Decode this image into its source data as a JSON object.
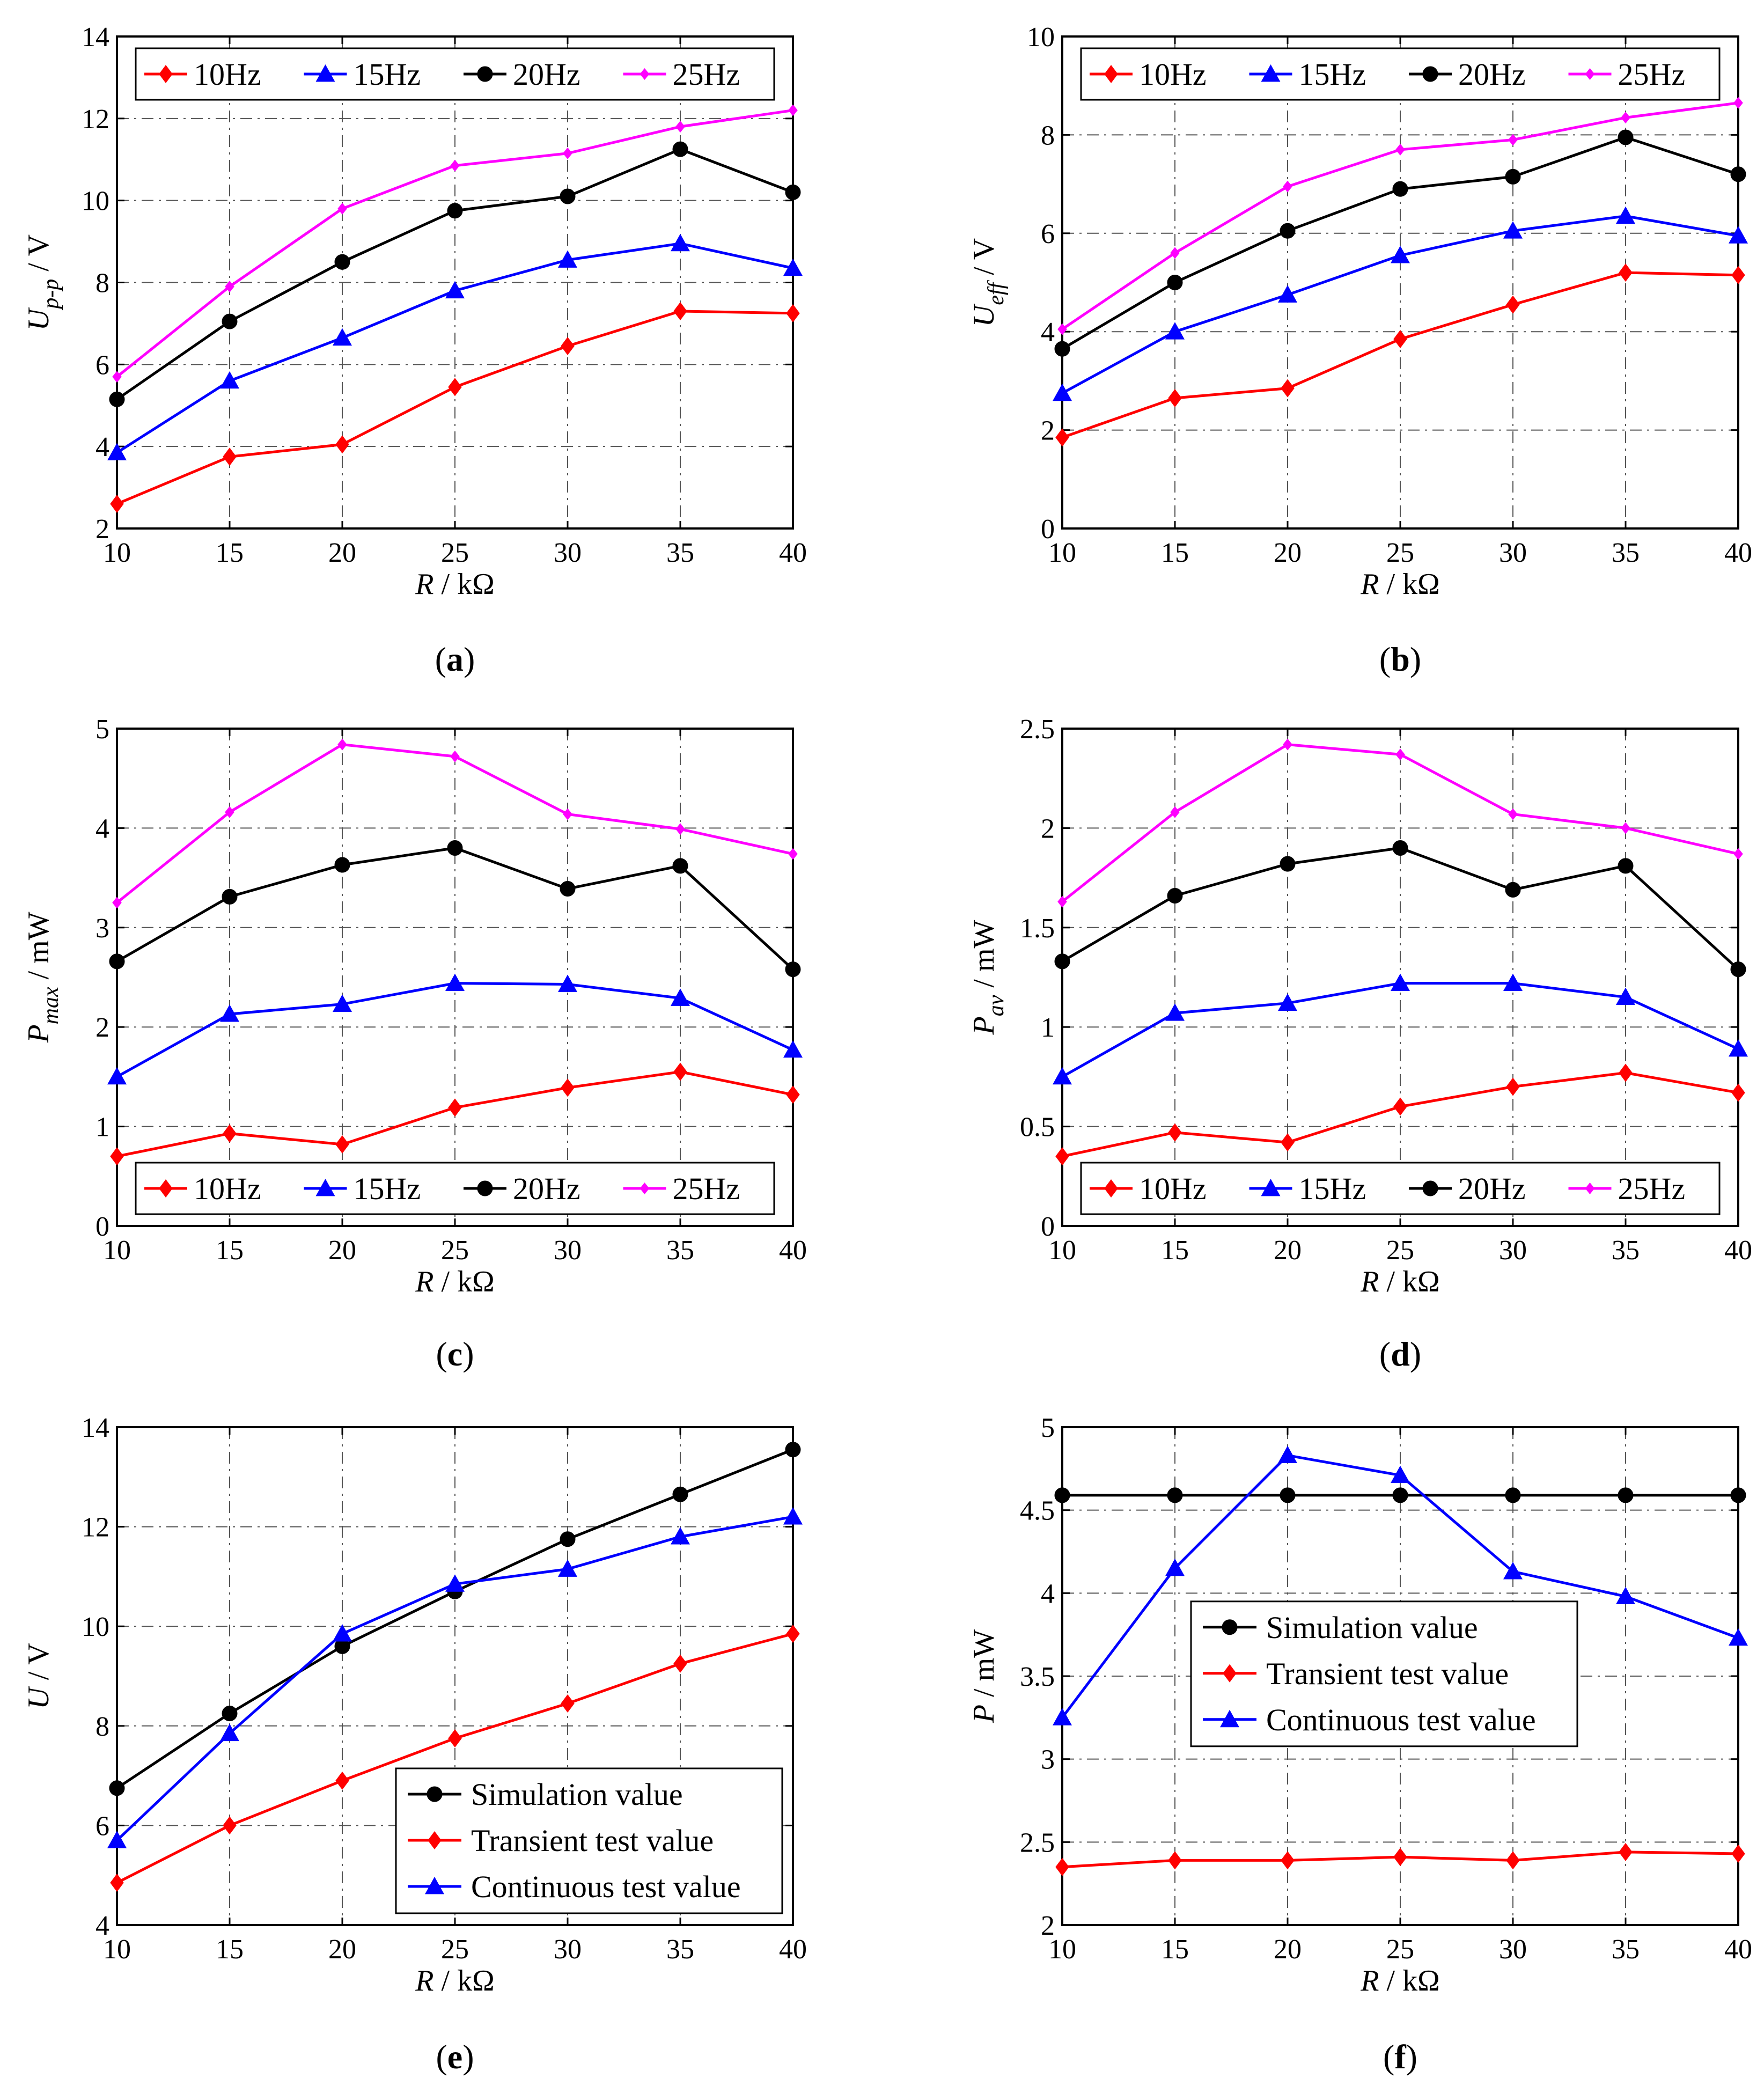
{
  "colors": {
    "red": "#ff0000",
    "blue": "#0000ff",
    "black": "#000000",
    "magenta": "#ff00ff",
    "grid": "#555555"
  },
  "chart_data": [
    {
      "id": "a",
      "caption": "a",
      "type": "line",
      "ylabel": {
        "main": "U",
        "sub": "p-p",
        "unit": " / V"
      },
      "xlabel": {
        "main": "R",
        "unit": " / kΩ"
      },
      "x": [
        10,
        15,
        20,
        25,
        30,
        35,
        40
      ],
      "xlim": [
        10,
        40
      ],
      "ylim": [
        2,
        14
      ],
      "xticks": [
        10,
        15,
        20,
        25,
        30,
        35,
        40
      ],
      "yticks": [
        2,
        4,
        6,
        8,
        10,
        12,
        14
      ],
      "legend": "top-horizontal",
      "series": [
        {
          "name": "10Hz",
          "color": "#ff0000",
          "marker": "diamond",
          "values": [
            2.6,
            3.75,
            4.05,
            5.45,
            6.45,
            7.3,
            7.25
          ]
        },
        {
          "name": "15Hz",
          "color": "#0000ff",
          "marker": "triangle",
          "values": [
            3.85,
            5.6,
            6.65,
            7.8,
            8.55,
            8.95,
            8.35
          ]
        },
        {
          "name": "20Hz",
          "color": "#000000",
          "marker": "circle",
          "values": [
            5.15,
            7.05,
            8.5,
            9.75,
            10.1,
            11.25,
            10.2
          ]
        },
        {
          "name": "25Hz",
          "color": "#ff00ff",
          "marker": "smalldiamond",
          "values": [
            5.7,
            7.9,
            9.8,
            10.85,
            11.15,
            11.8,
            12.2
          ]
        }
      ]
    },
    {
      "id": "b",
      "caption": "b",
      "type": "line",
      "ylabel": {
        "main": "U",
        "sub": "eff",
        "unit": " / V"
      },
      "xlabel": {
        "main": "R",
        "unit": " / kΩ"
      },
      "x": [
        10,
        15,
        20,
        25,
        30,
        35,
        40
      ],
      "xlim": [
        10,
        40
      ],
      "ylim": [
        0,
        10
      ],
      "xticks": [
        10,
        15,
        20,
        25,
        30,
        35,
        40
      ],
      "yticks": [
        0,
        2,
        4,
        6,
        8,
        10
      ],
      "legend": "top-horizontal",
      "series": [
        {
          "name": "10Hz",
          "color": "#ff0000",
          "marker": "diamond",
          "values": [
            1.85,
            2.65,
            2.85,
            3.85,
            4.55,
            5.2,
            5.15
          ]
        },
        {
          "name": "15Hz",
          "color": "#0000ff",
          "marker": "triangle",
          "values": [
            2.75,
            4.0,
            4.75,
            5.55,
            6.05,
            6.35,
            5.95
          ]
        },
        {
          "name": "20Hz",
          "color": "#000000",
          "marker": "circle",
          "values": [
            3.65,
            5.0,
            6.05,
            6.9,
            7.15,
            7.95,
            7.2
          ]
        },
        {
          "name": "25Hz",
          "color": "#ff00ff",
          "marker": "smalldiamond",
          "values": [
            4.05,
            5.6,
            6.95,
            7.7,
            7.9,
            8.35,
            8.65
          ]
        }
      ]
    },
    {
      "id": "c",
      "caption": "c",
      "type": "line",
      "ylabel": {
        "main": "P",
        "sub": "max",
        "unit": " / mW"
      },
      "xlabel": {
        "main": "R",
        "unit": " / kΩ"
      },
      "x": [
        10,
        15,
        20,
        25,
        30,
        35,
        40
      ],
      "xlim": [
        10,
        40
      ],
      "ylim": [
        0,
        5
      ],
      "xticks": [
        10,
        15,
        20,
        25,
        30,
        35,
        40
      ],
      "yticks": [
        0,
        1,
        2,
        3,
        4,
        5
      ],
      "legend": "bottom-horizontal",
      "series": [
        {
          "name": "10Hz",
          "color": "#ff0000",
          "marker": "diamond",
          "values": [
            0.7,
            0.93,
            0.82,
            1.19,
            1.39,
            1.55,
            1.32
          ]
        },
        {
          "name": "15Hz",
          "color": "#0000ff",
          "marker": "triangle",
          "values": [
            1.5,
            2.13,
            2.23,
            2.44,
            2.43,
            2.29,
            1.77
          ]
        },
        {
          "name": "20Hz",
          "color": "#000000",
          "marker": "circle",
          "values": [
            2.66,
            3.31,
            3.63,
            3.8,
            3.39,
            3.62,
            2.58
          ]
        },
        {
          "name": "25Hz",
          "color": "#ff00ff",
          "marker": "smalldiamond",
          "values": [
            3.25,
            4.16,
            4.84,
            4.72,
            4.14,
            3.99,
            3.74
          ]
        }
      ]
    },
    {
      "id": "d",
      "caption": "d",
      "type": "line",
      "ylabel": {
        "main": "P",
        "sub": "av",
        "unit": " / mW"
      },
      "xlabel": {
        "main": "R",
        "unit": " / kΩ"
      },
      "x": [
        10,
        15,
        20,
        25,
        30,
        35,
        40
      ],
      "xlim": [
        10,
        40
      ],
      "ylim": [
        0,
        2.5
      ],
      "xticks": [
        10,
        15,
        20,
        25,
        30,
        35,
        40
      ],
      "yticks": [
        0,
        0.5,
        1,
        1.5,
        2,
        2.5
      ],
      "legend": "bottom-horizontal",
      "series": [
        {
          "name": "10Hz",
          "color": "#ff0000",
          "marker": "diamond",
          "values": [
            0.35,
            0.47,
            0.42,
            0.6,
            0.7,
            0.77,
            0.67
          ]
        },
        {
          "name": "15Hz",
          "color": "#0000ff",
          "marker": "triangle",
          "values": [
            0.75,
            1.07,
            1.12,
            1.22,
            1.22,
            1.15,
            0.89
          ]
        },
        {
          "name": "20Hz",
          "color": "#000000",
          "marker": "circle",
          "values": [
            1.33,
            1.66,
            1.82,
            1.9,
            1.69,
            1.81,
            1.29
          ]
        },
        {
          "name": "25Hz",
          "color": "#ff00ff",
          "marker": "smalldiamond",
          "values": [
            1.63,
            2.08,
            2.42,
            2.37,
            2.07,
            2.0,
            1.87
          ]
        }
      ]
    },
    {
      "id": "e",
      "caption": "e",
      "type": "line",
      "ylabel": {
        "main": "U",
        "sub": "",
        "unit": " / V"
      },
      "xlabel": {
        "main": "R",
        "unit": " / kΩ"
      },
      "x": [
        10,
        15,
        20,
        25,
        30,
        35,
        40
      ],
      "xlim": [
        10,
        40
      ],
      "ylim": [
        4,
        14
      ],
      "xticks": [
        10,
        15,
        20,
        25,
        30,
        35,
        40
      ],
      "yticks": [
        4,
        6,
        8,
        10,
        12,
        14
      ],
      "legend": "bottom-right-vertical",
      "series": [
        {
          "name": "Simulation value",
          "color": "#000000",
          "marker": "circle",
          "values": [
            6.75,
            8.25,
            9.6,
            10.7,
            11.75,
            12.65,
            13.55
          ]
        },
        {
          "name": "Transient test value",
          "color": "#ff0000",
          "marker": "diamond",
          "values": [
            4.85,
            6.0,
            6.9,
            7.75,
            8.45,
            9.25,
            9.85
          ]
        },
        {
          "name": "Continuous test value",
          "color": "#0000ff",
          "marker": "triangle",
          "values": [
            5.7,
            7.85,
            9.85,
            10.85,
            11.15,
            11.8,
            12.2
          ]
        }
      ]
    },
    {
      "id": "f",
      "caption": "f",
      "type": "line",
      "ylabel": {
        "main": "P",
        "sub": "",
        "unit": " / mW"
      },
      "xlabel": {
        "main": "R",
        "unit": " / kΩ"
      },
      "x": [
        10,
        15,
        20,
        25,
        30,
        35,
        40
      ],
      "xlim": [
        10,
        40
      ],
      "ylim": [
        2,
        5
      ],
      "xticks": [
        10,
        15,
        20,
        25,
        30,
        35,
        40
      ],
      "yticks": [
        2,
        2.5,
        3,
        3.5,
        4,
        4.5,
        5
      ],
      "legend": "middle-left-vertical",
      "series": [
        {
          "name": "Simulation value",
          "color": "#000000",
          "marker": "circle",
          "values": [
            4.59,
            4.59,
            4.59,
            4.59,
            4.59,
            4.59,
            4.59
          ]
        },
        {
          "name": "Transient test value",
          "color": "#ff0000",
          "marker": "diamond",
          "values": [
            2.35,
            2.39,
            2.39,
            2.41,
            2.39,
            2.44,
            2.43
          ]
        },
        {
          "name": "Continuous test value",
          "color": "#0000ff",
          "marker": "triangle",
          "values": [
            3.25,
            4.15,
            4.83,
            4.71,
            4.13,
            3.98,
            3.73
          ]
        }
      ]
    }
  ]
}
